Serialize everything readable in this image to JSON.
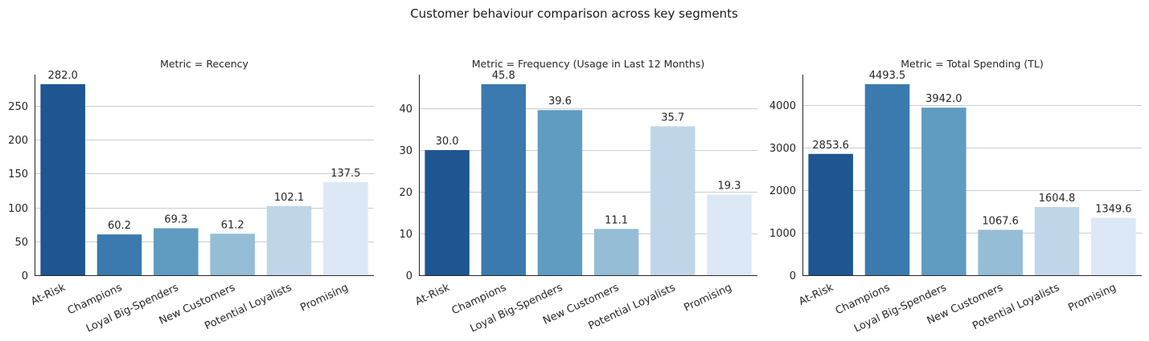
{
  "figure": {
    "suptitle": "Customer behaviour comparison across key segments"
  },
  "chart_data": [
    {
      "type": "bar",
      "title": "Metric = Recency",
      "categories": [
        "At-Risk",
        "Champions",
        "Loyal Big-Spenders",
        "New Customers",
        "Potential Loyalists",
        "Promising"
      ],
      "values": [
        282.0,
        60.2,
        69.3,
        61.2,
        102.1,
        137.5
      ],
      "data_labels": [
        "282.0",
        "60.2",
        "69.3",
        "61.2",
        "102.1",
        "137.5"
      ],
      "yticks": [
        0,
        50,
        100,
        150,
        200,
        250
      ],
      "ylim": [
        0,
        296.1
      ],
      "grid": "y",
      "colors": [
        "#1f5591",
        "#3a7aae",
        "#609bc1",
        "#95bdd6",
        "#c0d6e8",
        "#dce8f5"
      ]
    },
    {
      "type": "bar",
      "title": "Metric = Frequency (Usage in Last 12 Months)",
      "categories": [
        "At-Risk",
        "Champions",
        "Loyal Big-Spenders",
        "New Customers",
        "Potential Loyalists",
        "Promising"
      ],
      "values": [
        30.0,
        45.8,
        39.6,
        11.1,
        35.7,
        19.3
      ],
      "data_labels": [
        "30.0",
        "45.8",
        "39.6",
        "11.1",
        "35.7",
        "19.3"
      ],
      "yticks": [
        0,
        10,
        20,
        30,
        40
      ],
      "ylim": [
        0,
        48.1
      ],
      "grid": "y",
      "colors": [
        "#1f5591",
        "#3a7aae",
        "#609bc1",
        "#95bdd6",
        "#c0d6e8",
        "#dce8f5"
      ]
    },
    {
      "type": "bar",
      "title": "Metric = Total Spending (TL)",
      "categories": [
        "At-Risk",
        "Champions",
        "Loyal Big-Spenders",
        "New Customers",
        "Potential Loyalists",
        "Promising"
      ],
      "values": [
        2853.6,
        4493.5,
        3942.0,
        1067.6,
        1604.8,
        1349.6
      ],
      "data_labels": [
        "2853.6",
        "4493.5",
        "3942.0",
        "1067.6",
        "1604.8",
        "1349.6"
      ],
      "yticks": [
        0,
        1000,
        2000,
        3000,
        4000
      ],
      "ylim": [
        0,
        4718.2
      ],
      "grid": "y",
      "colors": [
        "#1f5591",
        "#3a7aae",
        "#609bc1",
        "#95bdd6",
        "#c0d6e8",
        "#dce8f5"
      ]
    }
  ]
}
